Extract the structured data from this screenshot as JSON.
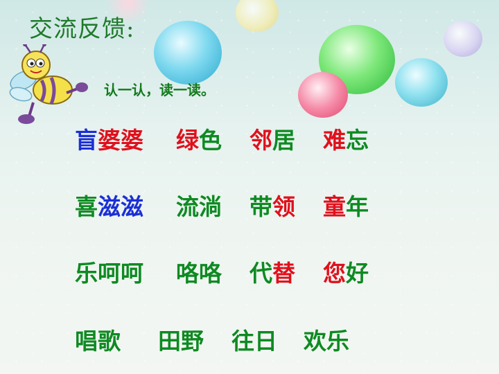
{
  "title": "交流反馈:",
  "instruction": "认一认，读一读。",
  "rows": [
    {
      "words": [
        {
          "segments": [
            {
              "text": "盲",
              "color": "blue"
            },
            {
              "text": "婆婆",
              "color": "red"
            }
          ]
        },
        {
          "segments": [
            {
              "text": "绿",
              "color": "red"
            },
            {
              "text": "色",
              "color": "green"
            }
          ]
        },
        {
          "segments": [
            {
              "text": "邻",
              "color": "red"
            },
            {
              "text": "居",
              "color": "green"
            }
          ]
        },
        {
          "segments": [
            {
              "text": "难",
              "color": "red"
            },
            {
              "text": "忘",
              "color": "green"
            }
          ]
        }
      ]
    },
    {
      "words": [
        {
          "segments": [
            {
              "text": "喜",
              "color": "green"
            },
            {
              "text": "滋滋",
              "color": "blue"
            }
          ]
        },
        {
          "segments": [
            {
              "text": "流淌",
              "color": "green"
            }
          ]
        },
        {
          "segments": [
            {
              "text": "带",
              "color": "green"
            },
            {
              "text": "领",
              "color": "red"
            }
          ]
        },
        {
          "segments": [
            {
              "text": "童",
              "color": "red"
            },
            {
              "text": "年",
              "color": "green"
            }
          ]
        }
      ]
    },
    {
      "words": [
        {
          "segments": [
            {
              "text": "乐呵呵",
              "color": "green"
            }
          ]
        },
        {
          "segments": [
            {
              "text": "咯咯",
              "color": "green"
            }
          ]
        },
        {
          "segments": [
            {
              "text": "代",
              "color": "green"
            },
            {
              "text": "替",
              "color": "red"
            }
          ]
        },
        {
          "segments": [
            {
              "text": "您",
              "color": "red"
            },
            {
              "text": "好",
              "color": "green"
            }
          ]
        }
      ]
    },
    {
      "words": [
        {
          "segments": [
            {
              "text": "唱歌",
              "color": "green"
            }
          ]
        },
        {
          "segments": [
            {
              "text": "田野",
              "color": "green"
            }
          ]
        },
        {
          "segments": [
            {
              "text": "往日",
              "color": "green"
            }
          ]
        },
        {
          "segments": [
            {
              "text": "欢乐",
              "color": "green"
            }
          ]
        }
      ]
    }
  ],
  "colors": {
    "blue": "#1b2fd6",
    "red": "#e0101c",
    "green": "#0e8a22",
    "title": "#1f7a2a"
  },
  "icons": {
    "mascot": "cartoon-bee-icon"
  }
}
